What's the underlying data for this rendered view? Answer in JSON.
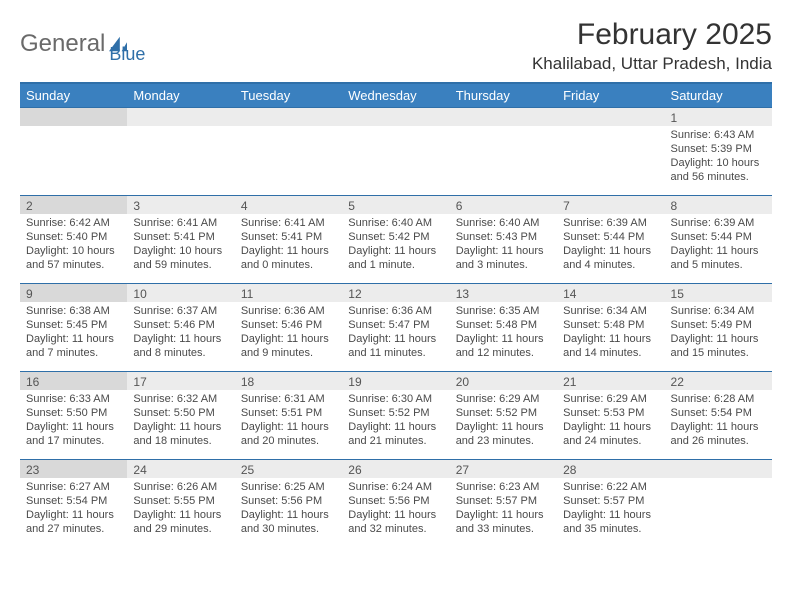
{
  "logo": {
    "word1": "General",
    "word2": "Blue",
    "icon_color": "#2f6fa8"
  },
  "title": "February 2025",
  "location": "Khalilabad, Uttar Pradesh, India",
  "colors": {
    "header_bg": "#3a80bf",
    "header_border": "#2f6fa8",
    "row_alt_bg": "#ececec",
    "row_dark_bg": "#d9d9d9",
    "text": "#4a4a4a"
  },
  "day_headers": [
    "Sunday",
    "Monday",
    "Tuesday",
    "Wednesday",
    "Thursday",
    "Friday",
    "Saturday"
  ],
  "weeks": [
    [
      null,
      null,
      null,
      null,
      null,
      null,
      {
        "n": "1",
        "sr": "6:43 AM",
        "ss": "5:39 PM",
        "dl": "10 hours and 56 minutes."
      }
    ],
    [
      {
        "n": "2",
        "sr": "6:42 AM",
        "ss": "5:40 PM",
        "dl": "10 hours and 57 minutes."
      },
      {
        "n": "3",
        "sr": "6:41 AM",
        "ss": "5:41 PM",
        "dl": "10 hours and 59 minutes."
      },
      {
        "n": "4",
        "sr": "6:41 AM",
        "ss": "5:41 PM",
        "dl": "11 hours and 0 minutes."
      },
      {
        "n": "5",
        "sr": "6:40 AM",
        "ss": "5:42 PM",
        "dl": "11 hours and 1 minute."
      },
      {
        "n": "6",
        "sr": "6:40 AM",
        "ss": "5:43 PM",
        "dl": "11 hours and 3 minutes."
      },
      {
        "n": "7",
        "sr": "6:39 AM",
        "ss": "5:44 PM",
        "dl": "11 hours and 4 minutes."
      },
      {
        "n": "8",
        "sr": "6:39 AM",
        "ss": "5:44 PM",
        "dl": "11 hours and 5 minutes."
      }
    ],
    [
      {
        "n": "9",
        "sr": "6:38 AM",
        "ss": "5:45 PM",
        "dl": "11 hours and 7 minutes."
      },
      {
        "n": "10",
        "sr": "6:37 AM",
        "ss": "5:46 PM",
        "dl": "11 hours and 8 minutes."
      },
      {
        "n": "11",
        "sr": "6:36 AM",
        "ss": "5:46 PM",
        "dl": "11 hours and 9 minutes."
      },
      {
        "n": "12",
        "sr": "6:36 AM",
        "ss": "5:47 PM",
        "dl": "11 hours and 11 minutes."
      },
      {
        "n": "13",
        "sr": "6:35 AM",
        "ss": "5:48 PM",
        "dl": "11 hours and 12 minutes."
      },
      {
        "n": "14",
        "sr": "6:34 AM",
        "ss": "5:48 PM",
        "dl": "11 hours and 14 minutes."
      },
      {
        "n": "15",
        "sr": "6:34 AM",
        "ss": "5:49 PM",
        "dl": "11 hours and 15 minutes."
      }
    ],
    [
      {
        "n": "16",
        "sr": "6:33 AM",
        "ss": "5:50 PM",
        "dl": "11 hours and 17 minutes."
      },
      {
        "n": "17",
        "sr": "6:32 AM",
        "ss": "5:50 PM",
        "dl": "11 hours and 18 minutes."
      },
      {
        "n": "18",
        "sr": "6:31 AM",
        "ss": "5:51 PM",
        "dl": "11 hours and 20 minutes."
      },
      {
        "n": "19",
        "sr": "6:30 AM",
        "ss": "5:52 PM",
        "dl": "11 hours and 21 minutes."
      },
      {
        "n": "20",
        "sr": "6:29 AM",
        "ss": "5:52 PM",
        "dl": "11 hours and 23 minutes."
      },
      {
        "n": "21",
        "sr": "6:29 AM",
        "ss": "5:53 PM",
        "dl": "11 hours and 24 minutes."
      },
      {
        "n": "22",
        "sr": "6:28 AM",
        "ss": "5:54 PM",
        "dl": "11 hours and 26 minutes."
      }
    ],
    [
      {
        "n": "23",
        "sr": "6:27 AM",
        "ss": "5:54 PM",
        "dl": "11 hours and 27 minutes."
      },
      {
        "n": "24",
        "sr": "6:26 AM",
        "ss": "5:55 PM",
        "dl": "11 hours and 29 minutes."
      },
      {
        "n": "25",
        "sr": "6:25 AM",
        "ss": "5:56 PM",
        "dl": "11 hours and 30 minutes."
      },
      {
        "n": "26",
        "sr": "6:24 AM",
        "ss": "5:56 PM",
        "dl": "11 hours and 32 minutes."
      },
      {
        "n": "27",
        "sr": "6:23 AM",
        "ss": "5:57 PM",
        "dl": "11 hours and 33 minutes."
      },
      {
        "n": "28",
        "sr": "6:22 AM",
        "ss": "5:57 PM",
        "dl": "11 hours and 35 minutes."
      },
      null
    ]
  ],
  "labels": {
    "sunrise": "Sunrise:",
    "sunset": "Sunset:",
    "daylight": "Daylight:"
  }
}
